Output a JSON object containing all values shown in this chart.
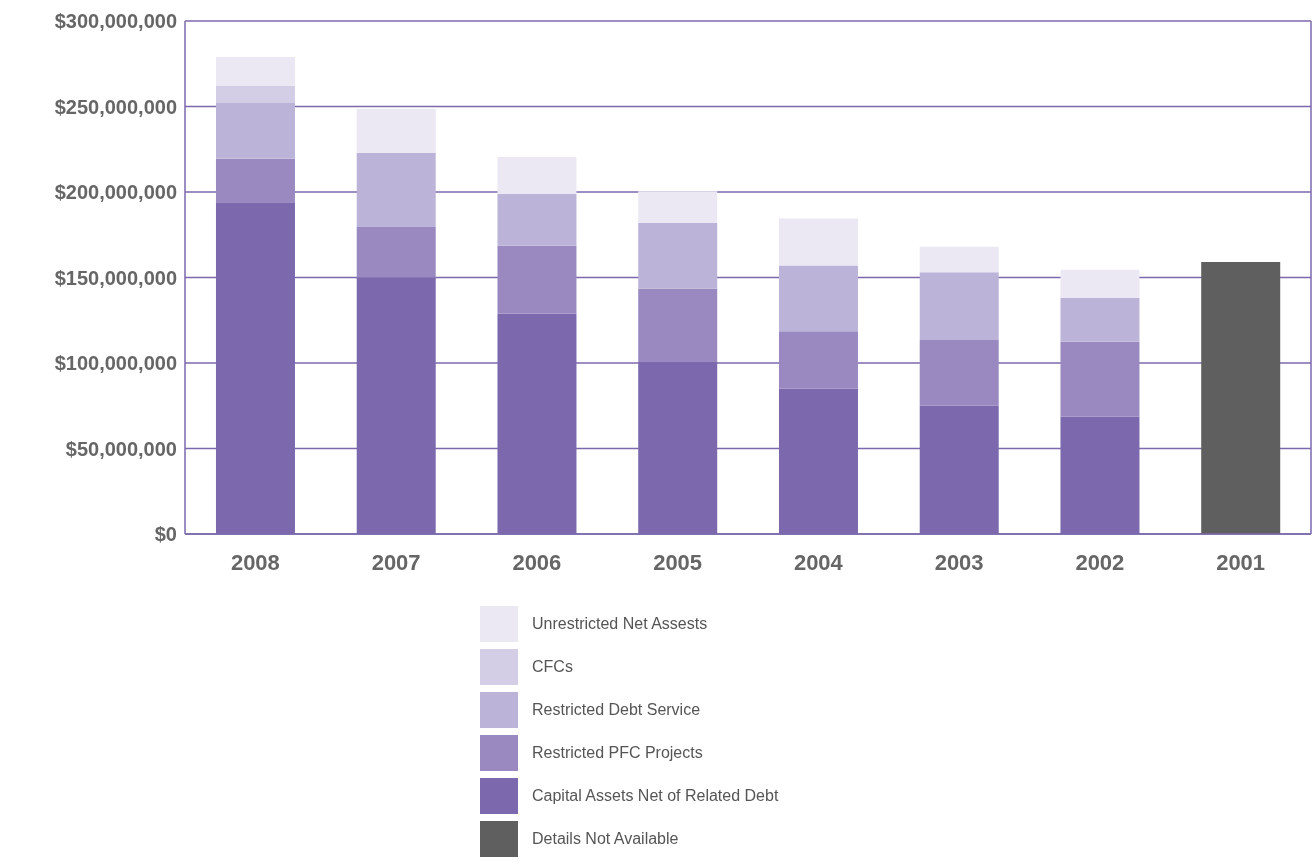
{
  "chart_data": {
    "type": "bar",
    "stacked": true,
    "categories": [
      "2008",
      "2007",
      "2006",
      "2005",
      "2004",
      "2003",
      "2002",
      "2001"
    ],
    "series": [
      {
        "name": "Details Not Available",
        "color": "#5f5f5f",
        "values": [
          null,
          null,
          null,
          null,
          null,
          null,
          null,
          159000000
        ]
      },
      {
        "name": "Capital Assets Net of Related Debt",
        "color": "#7b68ad",
        "values": [
          194000000,
          150000000,
          129000000,
          101000000,
          85000000,
          75000000,
          68500000,
          null
        ]
      },
      {
        "name": "Restricted PFC Projects",
        "color": "#9989c0",
        "values": [
          25500000,
          29500000,
          39500000,
          42500000,
          33500000,
          38500000,
          44000000,
          null
        ]
      },
      {
        "name": "Restricted Debt Service",
        "color": "#bcb4d8",
        "values": [
          32500000,
          43500000,
          30500000,
          38500000,
          38500000,
          39500000,
          25500000,
          null
        ]
      },
      {
        "name": "CFCs",
        "color": "#d4cde6",
        "values": [
          10000000,
          null,
          null,
          null,
          null,
          null,
          null,
          null
        ]
      },
      {
        "name": "Unrestricted Net Assests",
        "color": "#ebe8f4",
        "values": [
          17000000,
          25500000,
          21500000,
          18500000,
          27500000,
          15000000,
          16500000,
          null
        ]
      }
    ],
    "ylim": [
      0,
      300000000
    ],
    "yticks": [
      {
        "value": 0,
        "label": "$0"
      },
      {
        "value": 50000000,
        "label": "$50,000,000"
      },
      {
        "value": 100000000,
        "label": "$100,000,000"
      },
      {
        "value": 150000000,
        "label": "$150,000,000"
      },
      {
        "value": 200000000,
        "label": "$200,000,000"
      },
      {
        "value": 250000000,
        "label": "$250,000,000"
      },
      {
        "value": 300000000,
        "label": "$300,000,000"
      }
    ],
    "grid": "y",
    "legend": "bottom"
  }
}
